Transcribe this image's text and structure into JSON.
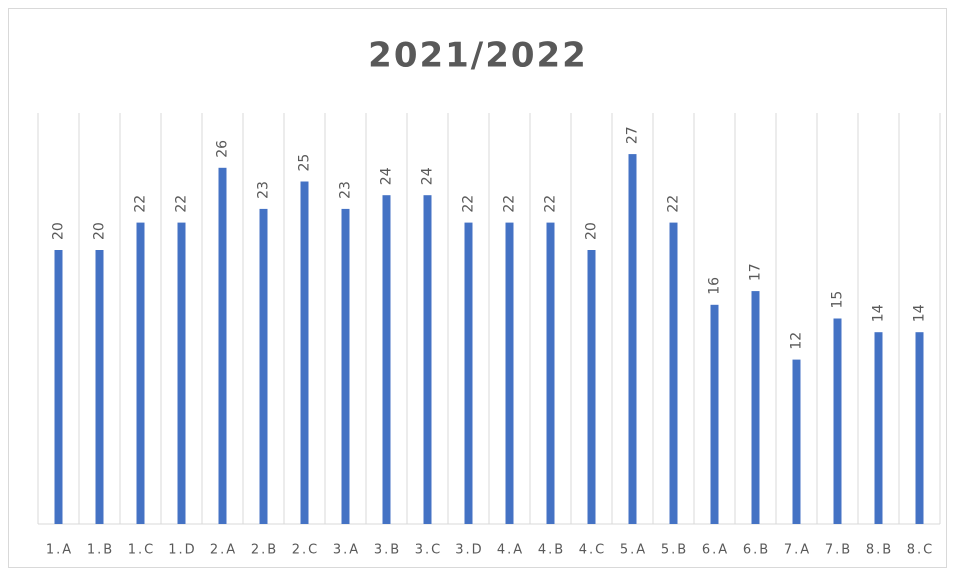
{
  "chart_data": {
    "type": "bar",
    "title": "2021/2022",
    "categories": [
      "1.A",
      "1.B",
      "1.C",
      "1.D",
      "2.A",
      "2.B",
      "2.C",
      "3.A",
      "3.B",
      "3.C",
      "3.D",
      "4.A",
      "4.B",
      "4.C",
      "5.A",
      "5.B",
      "6.A",
      "6.B",
      "7.A",
      "7.B",
      "8.B",
      "8.C"
    ],
    "values": [
      20,
      20,
      22,
      22,
      26,
      23,
      25,
      23,
      24,
      24,
      22,
      22,
      22,
      20,
      27,
      22,
      16,
      17,
      12,
      15,
      14,
      14
    ],
    "color": "#4472c4",
    "ylim": [
      0,
      30
    ]
  }
}
